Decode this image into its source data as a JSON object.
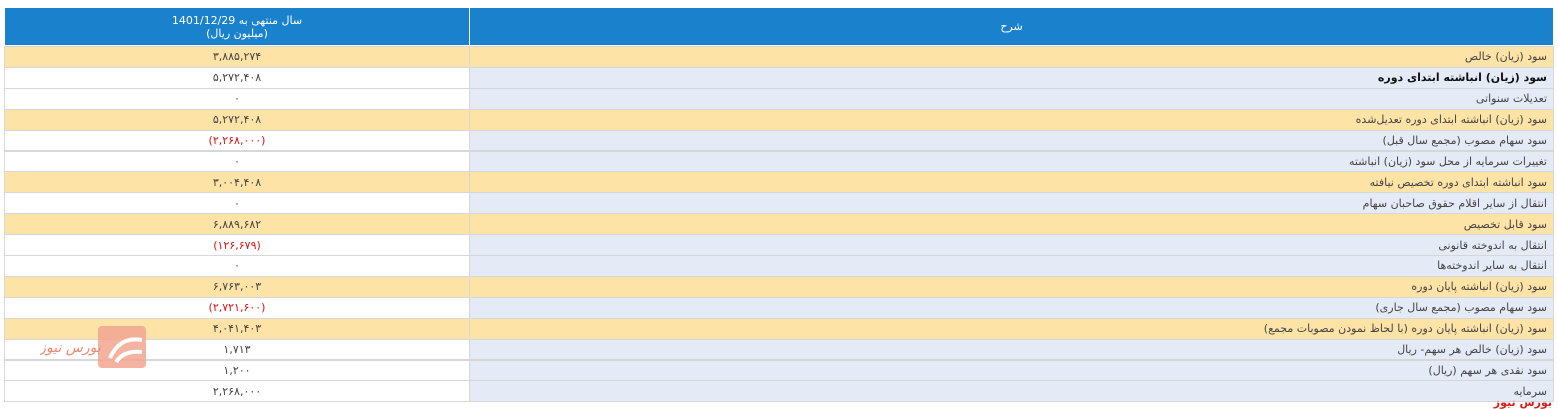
{
  "header": {
    "period": "سال منتهی به 1401/12/29",
    "unit": "(میلیون ریال)",
    "description": "شرح"
  },
  "rows": [
    {
      "value": "۳,۸۸۵,۲۷۴",
      "description": "سود (زیان) خالص",
      "highlight": true,
      "negative": false
    },
    {
      "value": "۵,۲۷۲,۴۰۸",
      "description": "سود (زیان) انباشته ابتدای دوره",
      "highlight": false,
      "negative": false
    },
    {
      "value": "۰",
      "description": "تعدیلات سنواتی",
      "highlight": false,
      "negative": false
    },
    {
      "value": "۵,۲۷۲,۴۰۸",
      "description": "سود (زیان) انباشته ابتدای دوره تعدیل‌شده",
      "highlight": true,
      "negative": false
    },
    {
      "value": "(۲,۲۶۸,۰۰۰)",
      "description": "سود سهام مصوب (مجمع سال قبل)",
      "highlight": false,
      "negative": true
    },
    {
      "value": "۰",
      "description": "تغییرات سرمایه از محل سود (زیان) انباشته",
      "highlight": false,
      "negative": false
    },
    {
      "value": "۳,۰۰۴,۴۰۸",
      "description": "سود انباشته ابتدای دوره تخصیص نیافته",
      "highlight": true,
      "negative": false
    },
    {
      "value": "۰",
      "description": "انتقال از سایر اقلام حقوق صاحبان سهام",
      "highlight": false,
      "negative": false
    },
    {
      "value": "۶,۸۸۹,۶۸۲",
      "description": "سود قابل تخصیص",
      "highlight": true,
      "negative": false
    },
    {
      "value": "(۱۲۶,۶۷۹)",
      "description": "انتقال به اندوخته قانونی",
      "highlight": false,
      "negative": true
    },
    {
      "value": "۰",
      "description": "انتقال به سایر اندوخته‌ها",
      "highlight": false,
      "negative": false
    },
    {
      "value": "۶,۷۶۳,۰۰۳",
      "description": "سود (زیان) انباشته پایان دوره",
      "highlight": true,
      "negative": false
    },
    {
      "value": "(۲,۷۲۱,۶۰۰)",
      "description": "سود سهام مصوب (مجمع سال جاری)",
      "highlight": false,
      "negative": true
    },
    {
      "value": "۴,۰۴۱,۴۰۳",
      "description": "سود (زیان) انباشته پایان دوره (با لحاظ نمودن مصوبات مجمع)",
      "highlight": true,
      "negative": false
    },
    {
      "value": "۱,۷۱۳",
      "description": "سود (زیان) خالص هر سهم- ریال",
      "highlight": false,
      "negative": false
    },
    {
      "value": "۱,۲۰۰",
      "description": "سود نقدی هر سهم (ریال)",
      "highlight": false,
      "negative": false
    },
    {
      "value": "۲,۲۶۸,۰۰۰",
      "description": "سرمایه",
      "highlight": false,
      "negative": false
    }
  ],
  "watermark": {
    "text": "بورس نیوز"
  },
  "footer_mark": "بورس نیوز"
}
